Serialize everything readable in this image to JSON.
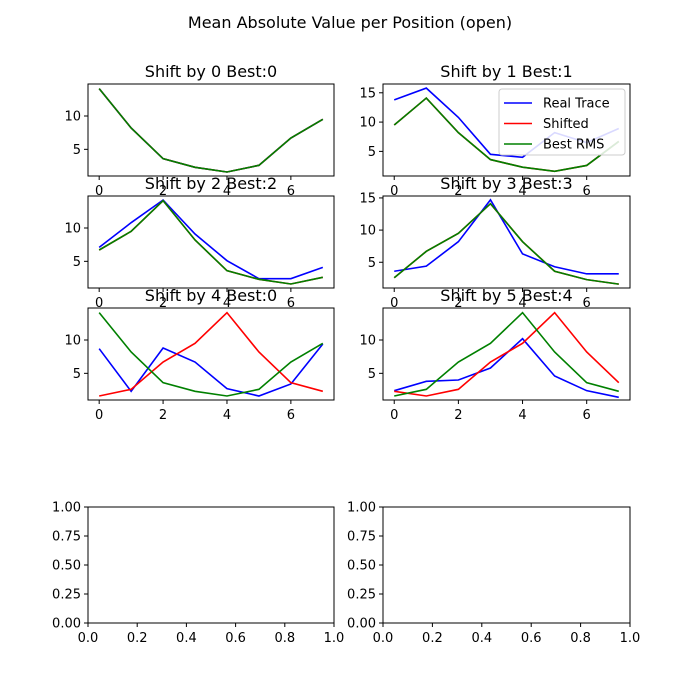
{
  "figure": {
    "suptitle": "Mean Absolute Value per Position (open)"
  },
  "legend": {
    "placement": "upper-right of panel 2",
    "entries": [
      "Real Trace",
      "Shifted",
      "Best RMS"
    ]
  },
  "colors": {
    "real": "#0000ff",
    "shifted": "#ff0000",
    "best": "#008000",
    "axes": "#000000",
    "background": "#ffffff"
  },
  "chart_data": [
    {
      "type": "line",
      "title": "Shift by 0 Best:0",
      "x": [
        0,
        1,
        2,
        3,
        4,
        5,
        6,
        7
      ],
      "xticks": [
        "0",
        "2",
        "4",
        "6"
      ],
      "yticks": [
        "5",
        "10"
      ],
      "xlim": [
        -0.35,
        7.35
      ],
      "ylim": [
        1.0,
        14.8
      ],
      "series": [
        {
          "name": "Real Trace",
          "values": [
            14.1,
            8.2,
            3.6,
            2.3,
            1.6,
            2.6,
            6.7,
            9.5
          ]
        },
        {
          "name": "Shifted",
          "values": [
            14.1,
            8.2,
            3.6,
            2.3,
            1.6,
            2.6,
            6.7,
            9.5
          ]
        },
        {
          "name": "Best RMS",
          "values": [
            14.1,
            8.2,
            3.6,
            2.3,
            1.6,
            2.6,
            6.7,
            9.5
          ]
        }
      ]
    },
    {
      "type": "line",
      "title": "Shift by 1 Best:1",
      "x": [
        0,
        1,
        2,
        3,
        4,
        5,
        6,
        7
      ],
      "xticks": [
        "0",
        "2",
        "4",
        "6"
      ],
      "yticks": [
        "5",
        "10",
        "15"
      ],
      "xlim": [
        -0.35,
        7.35
      ],
      "ylim": [
        0.8,
        16.5
      ],
      "series": [
        {
          "name": "Real Trace",
          "values": [
            13.8,
            15.8,
            10.8,
            4.5,
            4.0,
            8.2,
            6.5,
            8.9
          ]
        },
        {
          "name": "Shifted",
          "values": [
            9.5,
            14.1,
            8.2,
            3.6,
            2.3,
            1.6,
            2.6,
            6.7
          ]
        },
        {
          "name": "Best RMS",
          "values": [
            9.5,
            14.1,
            8.2,
            3.6,
            2.3,
            1.6,
            2.6,
            6.7
          ]
        }
      ]
    },
    {
      "type": "line",
      "title": "Shift by 2 Best:2",
      "x": [
        0,
        1,
        2,
        3,
        4,
        5,
        6,
        7
      ],
      "xticks": [
        "0",
        "2",
        "4",
        "6"
      ],
      "yticks": [
        "5",
        "10"
      ],
      "xlim": [
        -0.35,
        7.35
      ],
      "ylim": [
        1.0,
        14.8
      ],
      "series": [
        {
          "name": "Real Trace",
          "values": [
            7.1,
            10.8,
            14.2,
            9.1,
            5.1,
            2.4,
            2.4,
            4.1
          ]
        },
        {
          "name": "Shifted",
          "values": [
            6.7,
            9.5,
            14.1,
            8.2,
            3.6,
            2.3,
            1.6,
            2.6
          ]
        },
        {
          "name": "Best RMS",
          "values": [
            6.7,
            9.5,
            14.1,
            8.2,
            3.6,
            2.3,
            1.6,
            2.6
          ]
        }
      ]
    },
    {
      "type": "line",
      "title": "Shift by 3 Best:3",
      "x": [
        0,
        1,
        2,
        3,
        4,
        5,
        6,
        7
      ],
      "xticks": [
        "0",
        "2",
        "4",
        "6"
      ],
      "yticks": [
        "5",
        "10",
        "15"
      ],
      "xlim": [
        -0.35,
        7.35
      ],
      "ylim": [
        1.0,
        15.3
      ],
      "series": [
        {
          "name": "Real Trace",
          "values": [
            3.6,
            4.4,
            8.2,
            14.7,
            6.3,
            4.3,
            3.2,
            3.2
          ]
        },
        {
          "name": "Shifted",
          "values": [
            2.6,
            6.7,
            9.5,
            14.1,
            8.2,
            3.6,
            2.3,
            1.6
          ]
        },
        {
          "name": "Best RMS",
          "values": [
            2.6,
            6.7,
            9.5,
            14.1,
            8.2,
            3.6,
            2.3,
            1.6
          ]
        }
      ]
    },
    {
      "type": "line",
      "title": "Shift by 4 Best:0",
      "x": [
        0,
        1,
        2,
        3,
        4,
        5,
        6,
        7
      ],
      "xticks": [
        "0",
        "2",
        "4",
        "6"
      ],
      "yticks": [
        "5",
        "10"
      ],
      "xlim": [
        -0.35,
        7.35
      ],
      "ylim": [
        1.0,
        14.8
      ],
      "series": [
        {
          "name": "Real Trace",
          "values": [
            8.7,
            2.3,
            8.8,
            6.7,
            2.7,
            1.6,
            3.4,
            9.4
          ]
        },
        {
          "name": "Shifted",
          "values": [
            1.6,
            2.6,
            6.7,
            9.5,
            14.1,
            8.2,
            3.6,
            2.3
          ]
        },
        {
          "name": "Best RMS",
          "values": [
            14.1,
            8.2,
            3.6,
            2.3,
            1.6,
            2.6,
            6.7,
            9.5
          ]
        }
      ]
    },
    {
      "type": "line",
      "title": "Shift by 5 Best:4",
      "x": [
        0,
        1,
        2,
        3,
        4,
        5,
        6,
        7
      ],
      "xticks": [
        "0",
        "2",
        "4",
        "6"
      ],
      "yticks": [
        "5",
        "10"
      ],
      "xlim": [
        -0.35,
        7.35
      ],
      "ylim": [
        1.0,
        14.8
      ],
      "series": [
        {
          "name": "Real Trace",
          "values": [
            2.4,
            3.8,
            4.0,
            5.8,
            10.2,
            4.6,
            2.4,
            1.4
          ]
        },
        {
          "name": "Shifted",
          "values": [
            2.3,
            1.6,
            2.6,
            6.7,
            9.5,
            14.1,
            8.2,
            3.6
          ]
        },
        {
          "name": "Best RMS",
          "values": [
            1.6,
            2.6,
            6.7,
            9.5,
            14.1,
            8.2,
            3.6,
            2.3
          ]
        }
      ]
    },
    {
      "type": "line",
      "title": "",
      "x": [],
      "xticks": [
        "0.0",
        "0.2",
        "0.4",
        "0.6",
        "0.8",
        "1.0"
      ],
      "yticks": [
        "0.00",
        "0.25",
        "0.50",
        "0.75",
        "1.00"
      ],
      "xlim": [
        0,
        1
      ],
      "ylim": [
        0,
        1
      ],
      "series": []
    },
    {
      "type": "line",
      "title": "",
      "x": [],
      "xticks": [
        "0.0",
        "0.2",
        "0.4",
        "0.6",
        "0.8",
        "1.0"
      ],
      "yticks": [
        "0.00",
        "0.25",
        "0.50",
        "0.75",
        "1.00"
      ],
      "xlim": [
        0,
        1
      ],
      "ylim": [
        0,
        1
      ],
      "series": []
    }
  ]
}
